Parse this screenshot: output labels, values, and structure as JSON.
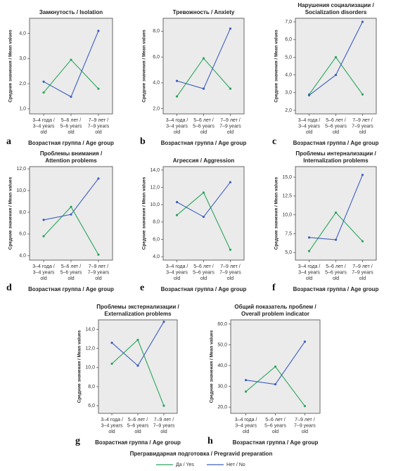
{
  "chart_data": [
    {
      "type": "line",
      "panel": "a",
      "title": [
        "Замкнутость / Isolation"
      ],
      "ylabel": "Средние значения / Mean values",
      "xlabel": "Возрастная группа / Age group",
      "categories": [
        [
          "3–4 года /",
          "3–4 years",
          "old"
        ],
        [
          "5–6 лет /",
          "5–6 years",
          "old"
        ],
        [
          "7–9 лет /",
          "7–9 years",
          "old"
        ]
      ],
      "series": [
        {
          "name": "Да / Yes",
          "color": "#2aa55c",
          "values": [
            1.65,
            2.95,
            1.8
          ]
        },
        {
          "name": "Нет / No",
          "color": "#3d5fbf",
          "values": [
            2.08,
            1.48,
            4.1
          ]
        }
      ],
      "ylim": [
        0.8,
        4.6
      ],
      "yticks": [
        {
          "value": 1,
          "label": "1,0"
        },
        {
          "value": 2,
          "label": "2,0"
        },
        {
          "value": 3,
          "label": "3,0"
        },
        {
          "value": 4,
          "label": "4,0"
        }
      ]
    },
    {
      "type": "line",
      "panel": "b",
      "title": [
        "Тревожность / Anxiety"
      ],
      "ylabel": "Средние значения / Mean values",
      "xlabel": "Возрастная группа / Age group",
      "categories": [
        [
          "3–4 года /",
          "3–4 years",
          "old"
        ],
        [
          "5–6 лет /",
          "5–6 years",
          "old"
        ],
        [
          "7–9 лет /",
          "7–9 years",
          "old"
        ]
      ],
      "series": [
        {
          "name": "Да / Yes",
          "color": "#2aa55c",
          "values": [
            2.95,
            5.9,
            3.55
          ]
        },
        {
          "name": "Нет / No",
          "color": "#3d5fbf",
          "values": [
            4.15,
            3.55,
            8.2
          ]
        }
      ],
      "ylim": [
        1.6,
        9.0
      ],
      "yticks": [
        {
          "value": 2,
          "label": "2,0"
        },
        {
          "value": 4,
          "label": "4,0"
        },
        {
          "value": 6,
          "label": "6,0"
        },
        {
          "value": 8,
          "label": "8,0"
        }
      ]
    },
    {
      "type": "line",
      "panel": "c",
      "title": [
        "Нарушения социализации /",
        "Socialization disorders"
      ],
      "ylabel": "Средние значения / Mean values",
      "xlabel": "Возрастная группа / Age group",
      "categories": [
        [
          "3–4 года /",
          "3–4 years",
          "old"
        ],
        [
          "5–6 лет /",
          "5–6 years",
          "old"
        ],
        [
          "7–9 лет /",
          "7–9 years",
          "old"
        ]
      ],
      "series": [
        {
          "name": "Да / Yes",
          "color": "#2aa55c",
          "values": [
            2.9,
            5.0,
            2.9
          ]
        },
        {
          "name": "Нет / No",
          "color": "#3d5fbf",
          "values": [
            2.85,
            4.0,
            7.0
          ]
        }
      ],
      "ylim": [
        1.8,
        7.2
      ],
      "yticks": [
        {
          "value": 2,
          "label": "2,0"
        },
        {
          "value": 3,
          "label": "3,0"
        },
        {
          "value": 4,
          "label": "4,0"
        },
        {
          "value": 5,
          "label": "5,0"
        },
        {
          "value": 6,
          "label": "6,0"
        },
        {
          "value": 7,
          "label": "7,0"
        }
      ]
    },
    {
      "type": "line",
      "panel": "d",
      "title": [
        "Проблемы внимания /",
        "Attention problems"
      ],
      "ylabel": "Средние значения / Mean values",
      "xlabel": "Возрастная группа / Age group",
      "categories": [
        [
          "3–4 года /",
          "3–4 years",
          "old"
        ],
        [
          "5–6 лет /",
          "5–6 years",
          "old"
        ],
        [
          "7–9 лет /",
          "7–9 years",
          "old"
        ]
      ],
      "series": [
        {
          "name": "Да / Yes",
          "color": "#2aa55c",
          "values": [
            5.8,
            8.5,
            4.1
          ]
        },
        {
          "name": "Нет / No",
          "color": "#3d5fbf",
          "values": [
            7.3,
            7.8,
            11.1
          ]
        }
      ],
      "ylim": [
        3.6,
        12.2
      ],
      "yticks": [
        {
          "value": 4,
          "label": "4,0"
        },
        {
          "value": 6,
          "label": "6,0"
        },
        {
          "value": 8,
          "label": "8,0"
        },
        {
          "value": 10,
          "label": "10,0"
        },
        {
          "value": 12,
          "label": "12,0"
        }
      ]
    },
    {
      "type": "line",
      "panel": "e",
      "title": [
        "Агрессия / Aggression"
      ],
      "ylabel": "Средние значения / Mean values",
      "xlabel": "Возрастная группа / Age group",
      "categories": [
        [
          "3–4 года /",
          "3–4 years",
          "old"
        ],
        [
          "5–6 лет /",
          "5–6 years",
          "old"
        ],
        [
          "7–9 лет /",
          "7–9 years",
          "old"
        ]
      ],
      "series": [
        {
          "name": "Да / Yes",
          "color": "#2aa55c",
          "values": [
            8.8,
            11.4,
            4.8
          ]
        },
        {
          "name": "Нет / No",
          "color": "#3d5fbf",
          "values": [
            10.3,
            8.6,
            12.6
          ]
        }
      ],
      "ylim": [
        3.6,
        14.4
      ],
      "yticks": [
        {
          "value": 4,
          "label": "4,0"
        },
        {
          "value": 6,
          "label": "6,0"
        },
        {
          "value": 8,
          "label": "8,0"
        },
        {
          "value": 10,
          "label": "10,0"
        },
        {
          "value": 12,
          "label": "12,0"
        },
        {
          "value": 14,
          "label": "14,0"
        }
      ]
    },
    {
      "type": "line",
      "panel": "f",
      "title": [
        "Проблемы интернализации /",
        "Internalization problems"
      ],
      "ylabel": "Средние значения / Mean values",
      "xlabel": "Возрастная группа / Age group",
      "categories": [
        [
          "3–4 года /",
          "3–4 years",
          "old"
        ],
        [
          "5–6 лет /",
          "5–6 years",
          "old"
        ],
        [
          "7–9 лет /",
          "7–9 years",
          "old"
        ]
      ],
      "series": [
        {
          "name": "Да / Yes",
          "color": "#2aa55c",
          "values": [
            5.2,
            10.3,
            6.5
          ]
        },
        {
          "name": "Нет / No",
          "color": "#3d5fbf",
          "values": [
            7.0,
            6.7,
            15.3
          ]
        }
      ],
      "ylim": [
        4.0,
        16.4
      ],
      "yticks": [
        {
          "value": 5,
          "label": "5,0"
        },
        {
          "value": 7.5,
          "label": "7,5"
        },
        {
          "value": 10,
          "label": "10,0"
        },
        {
          "value": 12.5,
          "label": "12,5"
        },
        {
          "value": 15,
          "label": "15,0"
        }
      ]
    },
    {
      "type": "line",
      "panel": "g",
      "title": [
        "Проблемы экстернализации /",
        "Externalization problems"
      ],
      "ylabel": "Средние значения / Mean values",
      "xlabel": "Возрастная группа / Age group",
      "categories": [
        [
          "3–4 года /",
          "3–4 years",
          "old"
        ],
        [
          "5–6 лет /",
          "5–6 years",
          "old"
        ],
        [
          "7–9 лет /",
          "7–9 years",
          "old"
        ]
      ],
      "series": [
        {
          "name": "Да / Yes",
          "color": "#2aa55c",
          "values": [
            10.4,
            12.9,
            6.0
          ]
        },
        {
          "name": "Нет / No",
          "color": "#3d5fbf",
          "values": [
            12.6,
            10.2,
            14.8
          ]
        }
      ],
      "ylim": [
        5.2,
        15.0
      ],
      "yticks": [
        {
          "value": 6,
          "label": "6,0"
        },
        {
          "value": 8,
          "label": "8,0"
        },
        {
          "value": 10,
          "label": "10,0"
        },
        {
          "value": 12,
          "label": "12,0"
        },
        {
          "value": 14,
          "label": "14,0"
        }
      ]
    },
    {
      "type": "line",
      "panel": "h",
      "title": [
        "Общий показатель проблем /",
        "Overall problem indicator"
      ],
      "ylabel": "Средние значения / Mean values",
      "xlabel": "Возрастная группа / Age group",
      "categories": [
        [
          "3–4 года /",
          "3–4 years",
          "old"
        ],
        [
          "5–6 лет /",
          "5–6 years",
          "old"
        ],
        [
          "7–9 лет /",
          "7–9 years",
          "old"
        ]
      ],
      "series": [
        {
          "name": "Да / Yes",
          "color": "#2aa55c",
          "values": [
            27.5,
            39.5,
            20.5
          ]
        },
        {
          "name": "Нет / No",
          "color": "#3d5fbf",
          "values": [
            33,
            31,
            51.5
          ]
        }
      ],
      "ylim": [
        17,
        62
      ],
      "yticks": [
        {
          "value": 20,
          "label": "20,0"
        },
        {
          "value": 30,
          "label": "30,0"
        },
        {
          "value": 40,
          "label": "40,0"
        },
        {
          "value": 50,
          "label": "50,0"
        },
        {
          "value": 60,
          "label": "60,0"
        }
      ]
    }
  ],
  "legend": {
    "title": "Прегравидарная подготовка / Pregravid preparation"
  }
}
